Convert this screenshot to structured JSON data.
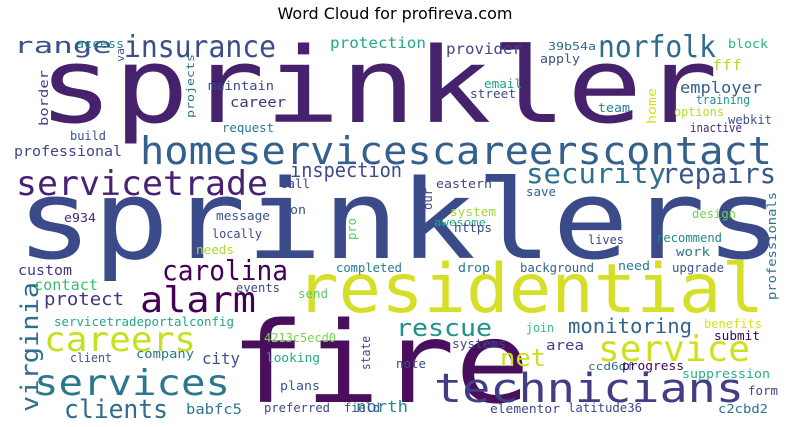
{
  "chart_data": {
    "type": "wordcloud",
    "title": "Word Cloud for profireva.com",
    "background": "#ffffff",
    "colormap": "viridis",
    "words": [
      {
        "text": "sprinkler",
        "color": "#46226c"
      },
      {
        "text": "sprinklers",
        "color": "#3b4b8a"
      },
      {
        "text": "fire",
        "color": "#4a0f5c"
      },
      {
        "text": "residential",
        "color": "#d6df27"
      },
      {
        "text": "homeservicescareerscontact",
        "color": "#34608d"
      },
      {
        "text": "technicians",
        "color": "#433d84"
      },
      {
        "text": "servicetrade",
        "color": "#482174"
      },
      {
        "text": "alarm",
        "color": "#440154"
      },
      {
        "text": "services",
        "color": "#2a788e"
      },
      {
        "text": "careers",
        "color": "#c6e020"
      },
      {
        "text": "service",
        "color": "#d0e11c"
      },
      {
        "text": "insurance",
        "color": "#3e4c8a"
      },
      {
        "text": "security",
        "color": "#2c718e"
      },
      {
        "text": "repairs",
        "color": "#3a548c"
      },
      {
        "text": "norfolk",
        "color": "#2f6b8e"
      },
      {
        "text": "carolina",
        "color": "#440154"
      },
      {
        "text": "clients",
        "color": "#2f6c8e"
      },
      {
        "text": "virginia",
        "color": "#2e6e8e"
      },
      {
        "text": "rescue",
        "color": "#21918c"
      },
      {
        "text": "monitoring",
        "color": "#33638d"
      },
      {
        "text": "net",
        "color": "#c8e020"
      },
      {
        "text": "inspection",
        "color": "#3e4a89"
      },
      {
        "text": "range",
        "color": "#3b528b"
      },
      {
        "text": "protect",
        "color": "#453581"
      },
      {
        "text": "protection",
        "color": "#22a884"
      },
      {
        "text": "provider",
        "color": "#3f4889"
      },
      {
        "text": "employer",
        "color": "#355f8d"
      },
      {
        "text": "north",
        "color": "#24868e"
      },
      {
        "text": "babfc5",
        "color": "#2a778e"
      },
      {
        "text": "city",
        "color": "#3a538b"
      },
      {
        "text": "area",
        "color": "#414487"
      },
      {
        "text": "contact",
        "color": "#3bbb75"
      },
      {
        "text": "custom",
        "color": "#453882"
      },
      {
        "text": "career",
        "color": "#46337e"
      },
      {
        "text": "professional",
        "color": "#3f4788"
      },
      {
        "text": "access",
        "color": "#25858e"
      },
      {
        "text": "va",
        "color": "#3b528b"
      },
      {
        "text": "projects",
        "color": "#2d708e"
      },
      {
        "text": "maintain",
        "color": "#3e4989"
      },
      {
        "text": "request",
        "color": "#29798e"
      },
      {
        "text": "build",
        "color": "#3b528b"
      },
      {
        "text": "border",
        "color": "#414487"
      },
      {
        "text": "39b54a",
        "color": "#31688e"
      },
      {
        "text": "apply",
        "color": "#3b528b"
      },
      {
        "text": "block",
        "color": "#2fb47c"
      },
      {
        "text": "fff",
        "color": "#b5de2b"
      },
      {
        "text": "email",
        "color": "#1f9e89"
      },
      {
        "text": "street",
        "color": "#3e4a89"
      },
      {
        "text": "team",
        "color": "#26828e"
      },
      {
        "text": "home",
        "color": "#d8e219"
      },
      {
        "text": "options",
        "color": "#b8de29"
      },
      {
        "text": "training",
        "color": "#21908d"
      },
      {
        "text": "webkit",
        "color": "#3b528b"
      },
      {
        "text": "inactive",
        "color": "#482677"
      },
      {
        "text": "call",
        "color": "#414487"
      },
      {
        "text": "our",
        "color": "#3e4a89"
      },
      {
        "text": "eastern",
        "color": "#3f4889"
      },
      {
        "text": "save",
        "color": "#33638d"
      },
      {
        "text": "professionals",
        "color": "#2c728e"
      },
      {
        "text": "e934",
        "color": "#482475"
      },
      {
        "text": "message",
        "color": "#3b528b"
      },
      {
        "text": "on",
        "color": "#3b528b"
      },
      {
        "text": "pro",
        "color": "#5ec962"
      },
      {
        "text": "system",
        "color": "#a0da39"
      },
      {
        "text": "awesome",
        "color": "#21a585"
      },
      {
        "text": "https",
        "color": "#3f4889"
      },
      {
        "text": "design",
        "color": "#75d054"
      },
      {
        "text": "locally",
        "color": "#3f4889"
      },
      {
        "text": "needs",
        "color": "#a5db36"
      },
      {
        "text": "lives",
        "color": "#3f4889"
      },
      {
        "text": "recommend",
        "color": "#24868e"
      },
      {
        "text": "work",
        "color": "#2a788e"
      },
      {
        "text": "completed",
        "color": "#29798e"
      },
      {
        "text": "drop",
        "color": "#2a768e"
      },
      {
        "text": "background",
        "color": "#33638d"
      },
      {
        "text": "need",
        "color": "#2a788e"
      },
      {
        "text": "upgrade",
        "color": "#3b528b"
      },
      {
        "text": "events",
        "color": "#3f4788"
      },
      {
        "text": "send",
        "color": "#5ec962"
      },
      {
        "text": "servicetradeportalconfig",
        "color": "#21a685"
      },
      {
        "text": "join",
        "color": "#3bbb75"
      },
      {
        "text": "4213c5ecd0",
        "color": "#7ad151"
      },
      {
        "text": "state",
        "color": "#3f4889"
      },
      {
        "text": "benefits",
        "color": "#d8e219"
      },
      {
        "text": "submit",
        "color": "#440154"
      },
      {
        "text": "client",
        "color": "#3b528b"
      },
      {
        "text": "company",
        "color": "#2a788e"
      },
      {
        "text": "looking",
        "color": "#25ab82"
      },
      {
        "text": "systems",
        "color": "#3e4989"
      },
      {
        "text": "ccd6df",
        "color": "#31688e"
      },
      {
        "text": "progress",
        "color": "#440154"
      },
      {
        "text": "note",
        "color": "#3f4889"
      },
      {
        "text": "suppression",
        "color": "#27ad81"
      },
      {
        "text": "plans",
        "color": "#3b528b"
      },
      {
        "text": "form",
        "color": "#3f4889"
      },
      {
        "text": "preferred",
        "color": "#3e4a89"
      },
      {
        "text": "field",
        "color": "#3f4889"
      },
      {
        "text": "elementor",
        "color": "#3f4889"
      },
      {
        "text": "latitude36",
        "color": "#3e4a89"
      },
      {
        "text": "c2cbd2",
        "color": "#2c718e"
      }
    ]
  }
}
